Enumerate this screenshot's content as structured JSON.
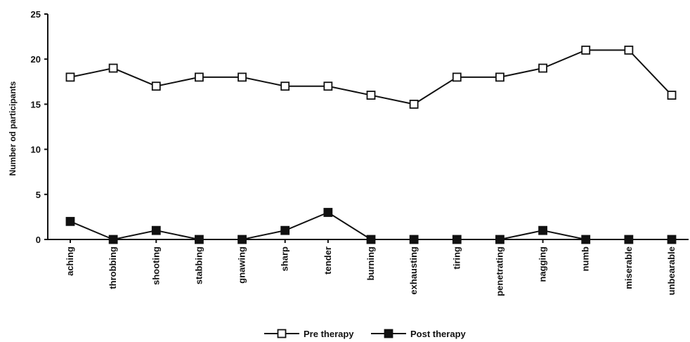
{
  "chart_data": {
    "type": "line",
    "ylabel": "Number od participants",
    "xlabel": "",
    "ylim": [
      0,
      25
    ],
    "yticks": [
      0,
      5,
      10,
      15,
      20,
      25
    ],
    "grid": false,
    "legend_position": "bottom-center",
    "categories": [
      "aching",
      "throbbing",
      "shooting",
      "stabbing",
      "gnawing",
      "sharp",
      "tender",
      "burning",
      "exhausting",
      "tiring",
      "penetrating",
      "nagging",
      "numb",
      "miserable",
      "unbearable"
    ],
    "series": [
      {
        "name": "Pre therapy",
        "marker": "open-square",
        "color": "#111111",
        "values": [
          18,
          19,
          17,
          18,
          18,
          17,
          17,
          16,
          15,
          18,
          18,
          19,
          21,
          21,
          16
        ]
      },
      {
        "name": "Post therapy",
        "marker": "filled-square",
        "color": "#111111",
        "values": [
          2,
          0,
          1,
          0,
          0,
          1,
          3,
          0,
          0,
          0,
          0,
          1,
          0,
          0,
          0
        ]
      }
    ]
  }
}
